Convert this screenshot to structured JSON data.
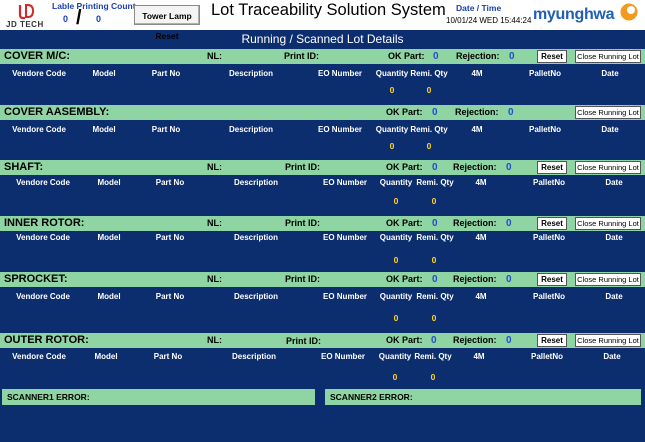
{
  "header": {
    "logo_text": "JD TECH",
    "label_printing_count_label": "Lable Printing Count",
    "count_left": "0",
    "count_separator": "/",
    "count_right": "0",
    "tower_lamp_reset_label": "Tower Lamp Reset",
    "title": "Lot Traceability Solution System",
    "date_time_label": "Date / Time",
    "date_time_value": "10/01/24 WED 15:44:24",
    "brand_text": "myunghwa"
  },
  "subtitle": "Running / Scanned Lot Details",
  "labels": {
    "nl": "NL:",
    "print_id": "Print ID:",
    "ok_part": "OK Part:",
    "rejection": "Rejection:",
    "reset": "Reset",
    "close_running_lot": "Close Running Lot"
  },
  "columns": [
    "Vendore Code",
    "Model",
    "Part No",
    "Description",
    "EO Number",
    "Quantity",
    "Remi. Qty",
    "4M",
    "PalletNo",
    "Date"
  ],
  "sections": [
    {
      "title": "COVER M/C:",
      "ok_part": "0",
      "rejection": "0",
      "quantity": "0",
      "remi_qty": "0"
    },
    {
      "title": "COVER AASEMBLY:",
      "ok_part": "0",
      "rejection": "0",
      "quantity": "0",
      "remi_qty": "0"
    },
    {
      "title": "SHAFT:",
      "ok_part": "0",
      "rejection": "0",
      "quantity": "0",
      "remi_qty": "0"
    },
    {
      "title": "INNER ROTOR:",
      "ok_part": "0",
      "rejection": "0",
      "quantity": "0",
      "remi_qty": "0"
    },
    {
      "title": "SPROCKET:",
      "ok_part": "0",
      "rejection": "0",
      "quantity": "0",
      "remi_qty": "0"
    },
    {
      "title": "OUTER ROTOR:",
      "ok_part": "0",
      "rejection": "0",
      "quantity": "0",
      "remi_qty": "0"
    }
  ],
  "errors": {
    "scanner1": "SCANNER1 ERROR:",
    "scanner2": "SCANNER2 ERROR:"
  },
  "colors": {
    "background": "#0d2e6e",
    "section_bar": "#8fd4a3",
    "count_value": "#1f4fd0",
    "zero_value": "#ffd21f"
  }
}
